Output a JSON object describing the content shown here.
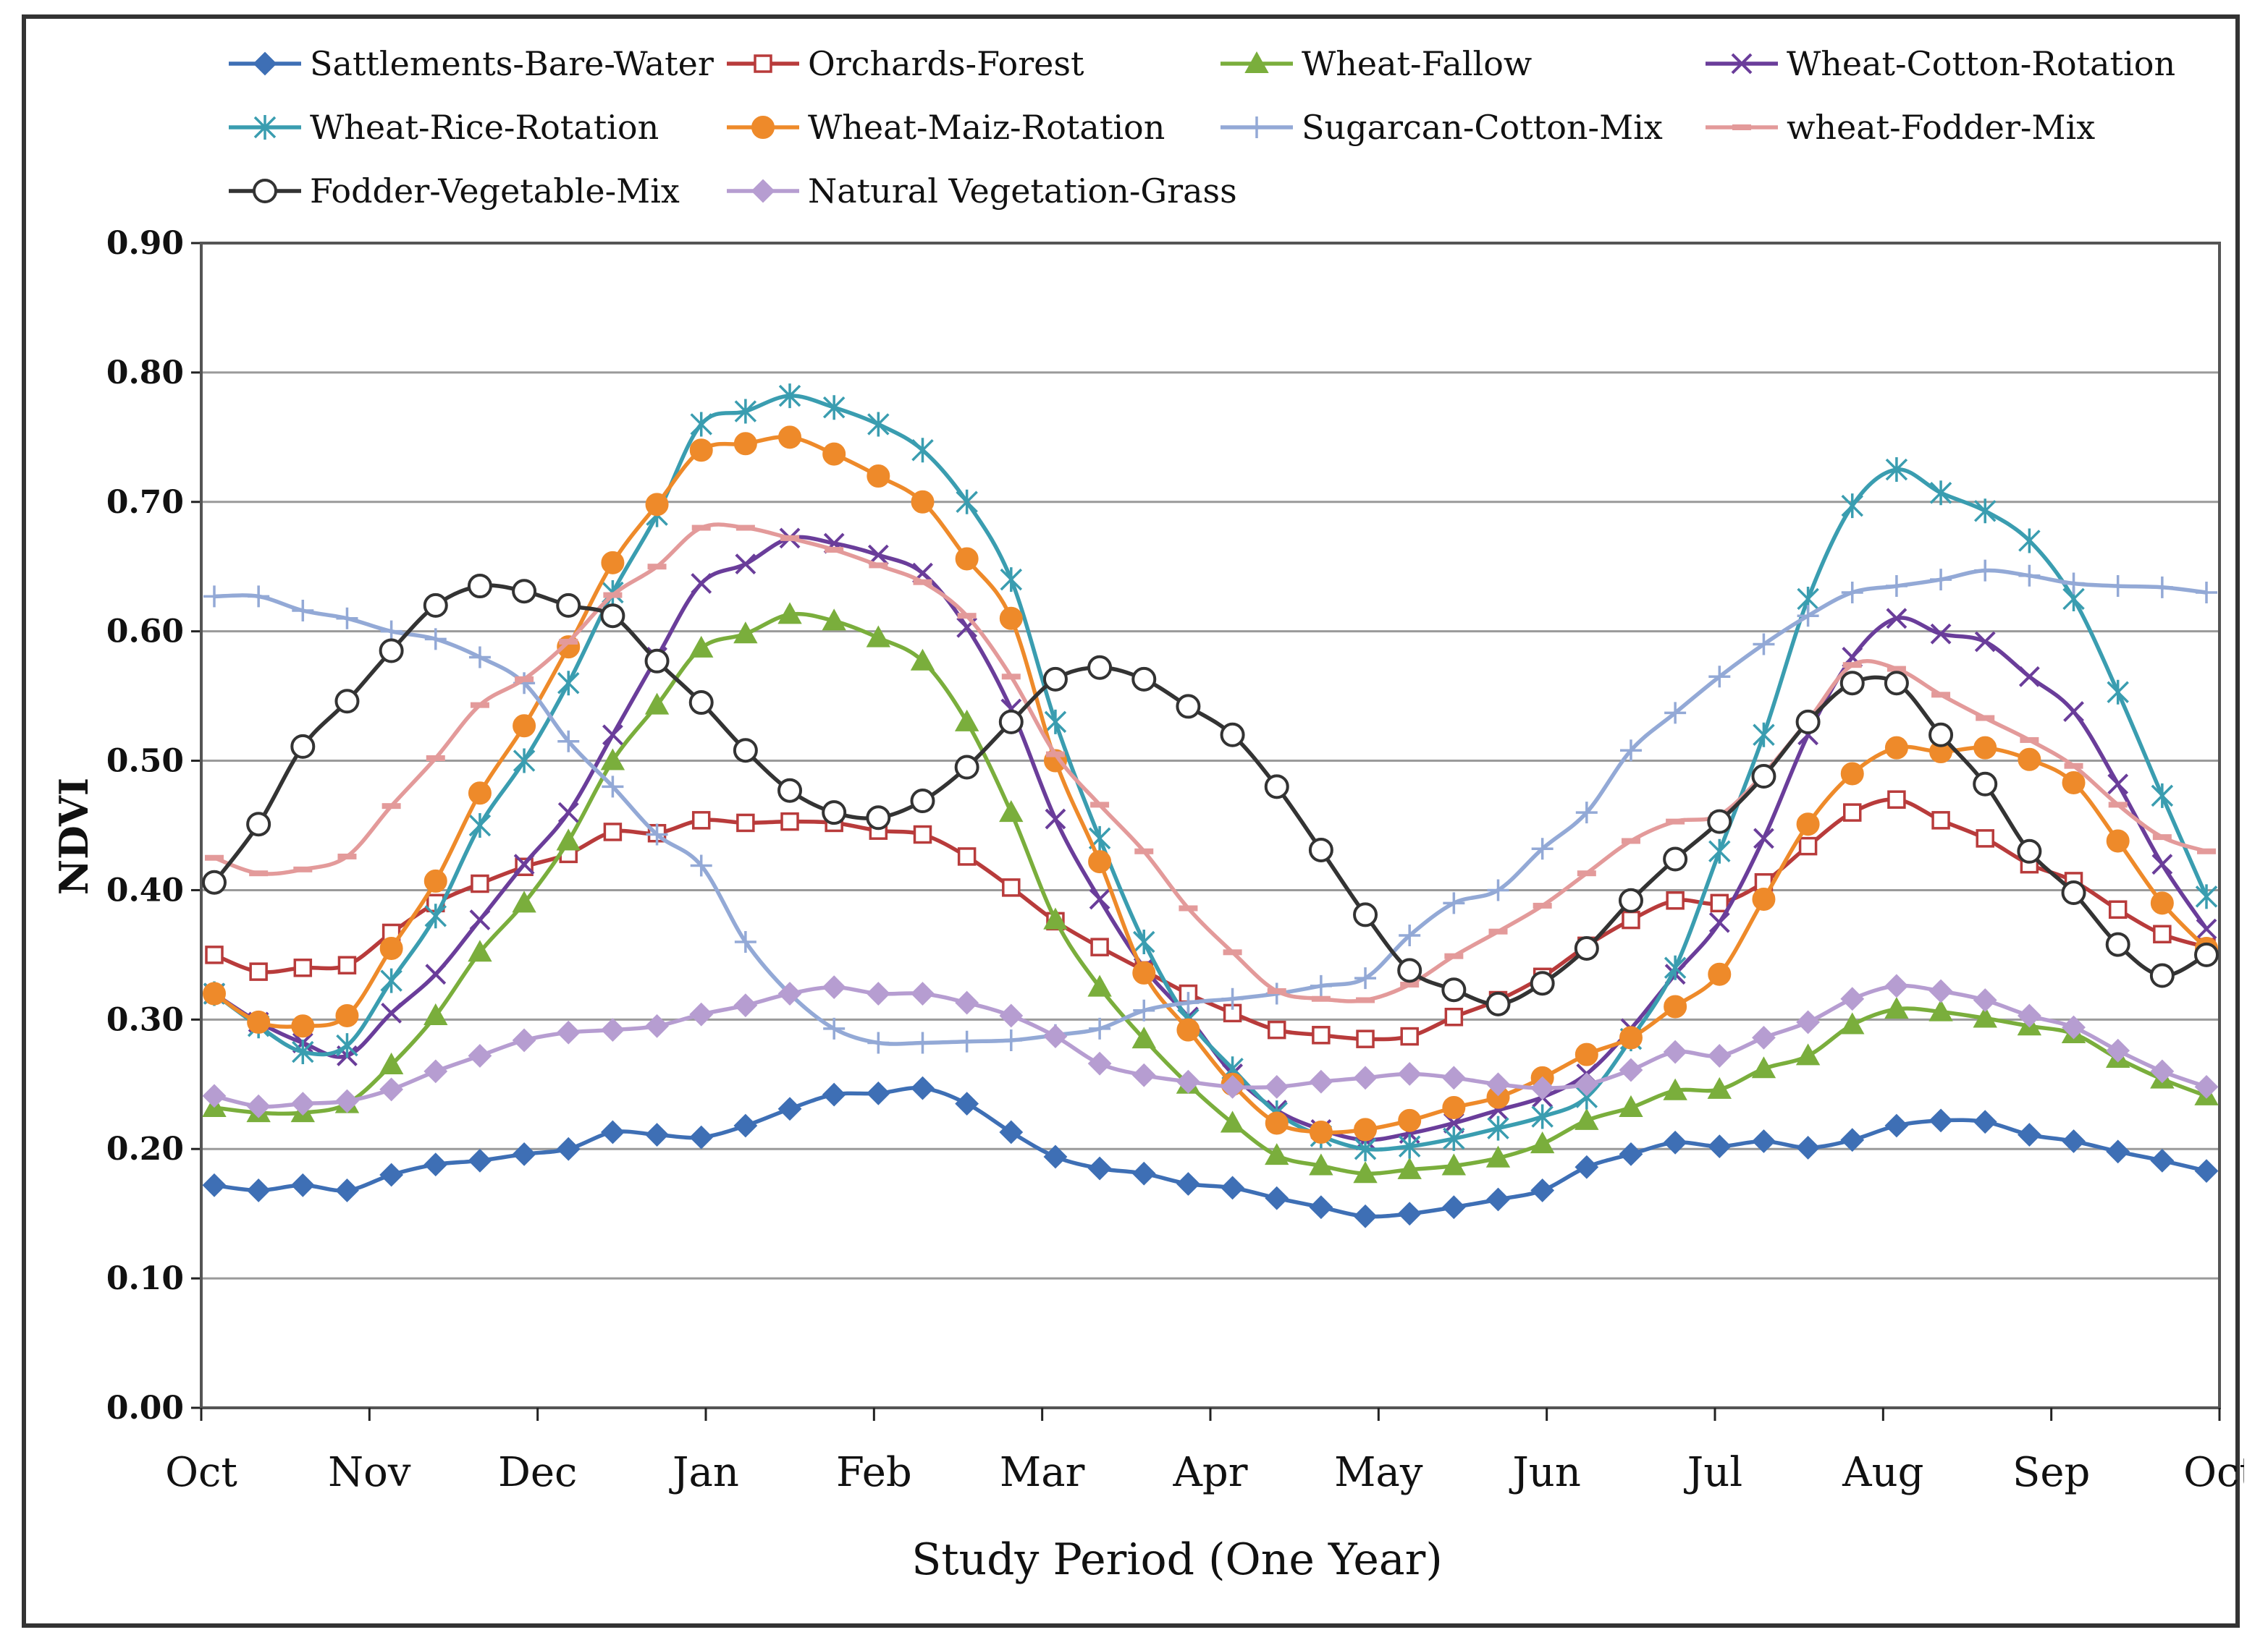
{
  "chart_data": {
    "type": "line",
    "title": "",
    "xlabel": "Study Period (One Year)",
    "ylabel": "NDVI",
    "ylim": [
      0,
      0.9
    ],
    "y_ticks": [
      "0.00",
      "0.10",
      "0.20",
      "0.30",
      "0.40",
      "0.50",
      "0.60",
      "0.70",
      "0.80",
      "0.90"
    ],
    "x_month_labels": [
      "Oct",
      "Nov",
      "Dec",
      "Jan",
      "Feb",
      "Mar",
      "Apr",
      "May",
      "Jun",
      "Jul",
      "Aug",
      "Sep",
      "Oct"
    ],
    "grid": "horizontal",
    "legend_position": "top",
    "series": [
      {
        "name": "Sattlements-Bare-Water",
        "color": "#3E6FB5",
        "marker": "diamond-filled",
        "values": [
          0.172,
          0.168,
          0.172,
          0.168,
          0.18,
          0.188,
          0.191,
          0.196,
          0.2,
          0.213,
          0.211,
          0.209,
          0.218,
          0.231,
          0.242,
          0.243,
          0.247,
          0.235,
          0.213,
          0.194,
          0.185,
          0.181,
          0.173,
          0.17,
          0.162,
          0.155,
          0.148,
          0.15,
          0.155,
          0.161,
          0.168,
          0.186,
          0.196,
          0.205,
          0.202,
          0.206,
          0.201,
          0.207,
          0.218,
          0.222,
          0.221,
          0.211,
          0.206,
          0.198,
          0.191,
          0.183
        ]
      },
      {
        "name": "Orchards-Forest",
        "color": "#B83B3B",
        "marker": "square-open",
        "values": [
          0.35,
          0.337,
          0.34,
          0.342,
          0.367,
          0.39,
          0.405,
          0.418,
          0.428,
          0.445,
          0.444,
          0.454,
          0.452,
          0.453,
          0.452,
          0.446,
          0.443,
          0.426,
          0.402,
          0.376,
          0.356,
          0.338,
          0.32,
          0.305,
          0.292,
          0.288,
          0.285,
          0.287,
          0.302,
          0.315,
          0.333,
          0.357,
          0.377,
          0.392,
          0.39,
          0.406,
          0.434,
          0.46,
          0.47,
          0.454,
          0.44,
          0.42,
          0.407,
          0.385,
          0.366,
          0.356
        ]
      },
      {
        "name": "Wheat-Fallow",
        "color": "#7AAE3C",
        "marker": "triangle-filled",
        "values": [
          0.232,
          0.228,
          0.228,
          0.235,
          0.265,
          0.303,
          0.352,
          0.39,
          0.438,
          0.5,
          0.543,
          0.587,
          0.598,
          0.613,
          0.608,
          0.595,
          0.577,
          0.53,
          0.46,
          0.377,
          0.325,
          0.285,
          0.25,
          0.22,
          0.195,
          0.187,
          0.181,
          0.184,
          0.187,
          0.193,
          0.204,
          0.222,
          0.232,
          0.245,
          0.246,
          0.262,
          0.272,
          0.296,
          0.308,
          0.306,
          0.301,
          0.295,
          0.289,
          0.27,
          0.254,
          0.241
        ]
      },
      {
        "name": "Wheat-Cotton-Rotation",
        "color": "#6A3D9A",
        "marker": "x",
        "values": [
          0.32,
          0.298,
          0.282,
          0.272,
          0.305,
          0.335,
          0.377,
          0.42,
          0.46,
          0.52,
          0.58,
          0.637,
          0.652,
          0.672,
          0.668,
          0.659,
          0.645,
          0.603,
          0.54,
          0.455,
          0.393,
          0.34,
          0.302,
          0.258,
          0.23,
          0.215,
          0.207,
          0.212,
          0.22,
          0.23,
          0.24,
          0.258,
          0.293,
          0.335,
          0.375,
          0.44,
          0.52,
          0.58,
          0.61,
          0.598,
          0.592,
          0.565,
          0.538,
          0.482,
          0.42,
          0.37
        ]
      },
      {
        "name": "Wheat-Rice-Rotation",
        "color": "#3A9DB0",
        "marker": "asterisk",
        "values": [
          0.32,
          0.295,
          0.275,
          0.28,
          0.33,
          0.38,
          0.45,
          0.5,
          0.56,
          0.63,
          0.69,
          0.76,
          0.77,
          0.782,
          0.773,
          0.76,
          0.74,
          0.7,
          0.64,
          0.53,
          0.44,
          0.36,
          0.3,
          0.262,
          0.228,
          0.21,
          0.2,
          0.202,
          0.208,
          0.216,
          0.225,
          0.24,
          0.285,
          0.34,
          0.43,
          0.52,
          0.625,
          0.697,
          0.725,
          0.707,
          0.693,
          0.67,
          0.625,
          0.553,
          0.473,
          0.395
        ]
      },
      {
        "name": "Wheat-Maiz-Rotation",
        "color": "#EE8A2A",
        "marker": "circle-filled",
        "values": [
          0.32,
          0.298,
          0.295,
          0.303,
          0.355,
          0.407,
          0.475,
          0.527,
          0.588,
          0.653,
          0.698,
          0.74,
          0.745,
          0.75,
          0.737,
          0.72,
          0.7,
          0.656,
          0.61,
          0.5,
          0.422,
          0.336,
          0.292,
          0.25,
          0.22,
          0.213,
          0.215,
          0.222,
          0.232,
          0.24,
          0.255,
          0.273,
          0.286,
          0.31,
          0.335,
          0.393,
          0.451,
          0.49,
          0.51,
          0.507,
          0.51,
          0.501,
          0.483,
          0.438,
          0.39,
          0.355
        ]
      },
      {
        "name": "Sugarcan-Cotton-Mix",
        "color": "#93A9D6",
        "marker": "plus",
        "values": [
          0.627,
          0.627,
          0.616,
          0.61,
          0.6,
          0.594,
          0.58,
          0.56,
          0.515,
          0.48,
          0.443,
          0.419,
          0.36,
          0.32,
          0.293,
          0.282,
          0.282,
          0.283,
          0.284,
          0.288,
          0.293,
          0.307,
          0.313,
          0.316,
          0.32,
          0.326,
          0.332,
          0.365,
          0.39,
          0.4,
          0.432,
          0.46,
          0.508,
          0.537,
          0.565,
          0.59,
          0.612,
          0.63,
          0.635,
          0.64,
          0.647,
          0.643,
          0.637,
          0.635,
          0.634,
          0.63
        ]
      },
      {
        "name": "wheat-Fodder-Mix",
        "color": "#E39A9A",
        "marker": "dash",
        "values": [
          0.425,
          0.413,
          0.416,
          0.426,
          0.465,
          0.502,
          0.543,
          0.563,
          0.592,
          0.628,
          0.65,
          0.68,
          0.68,
          0.672,
          0.663,
          0.651,
          0.638,
          0.612,
          0.565,
          0.505,
          0.466,
          0.43,
          0.386,
          0.352,
          0.322,
          0.316,
          0.315,
          0.327,
          0.349,
          0.368,
          0.388,
          0.413,
          0.438,
          0.453,
          0.458,
          0.49,
          0.531,
          0.574,
          0.571,
          0.551,
          0.533,
          0.516,
          0.496,
          0.466,
          0.441,
          0.43
        ]
      },
      {
        "name": "Fodder-Vegetable-Mix",
        "color": "#333333",
        "marker": "circle-open",
        "values": [
          0.406,
          0.451,
          0.511,
          0.546,
          0.585,
          0.62,
          0.635,
          0.631,
          0.62,
          0.612,
          0.577,
          0.545,
          0.508,
          0.477,
          0.46,
          0.456,
          0.469,
          0.495,
          0.53,
          0.563,
          0.572,
          0.563,
          0.542,
          0.52,
          0.48,
          0.431,
          0.381,
          0.338,
          0.323,
          0.312,
          0.328,
          0.355,
          0.392,
          0.424,
          0.453,
          0.488,
          0.53,
          0.56,
          0.56,
          0.52,
          0.482,
          0.43,
          0.398,
          0.358,
          0.334,
          0.35
        ]
      },
      {
        "name": "Natural Vegetation-Grass",
        "color": "#B69DD1",
        "marker": "diamond-filled",
        "values": [
          0.241,
          0.233,
          0.235,
          0.237,
          0.246,
          0.26,
          0.272,
          0.284,
          0.29,
          0.292,
          0.295,
          0.304,
          0.311,
          0.32,
          0.325,
          0.32,
          0.32,
          0.313,
          0.303,
          0.287,
          0.266,
          0.257,
          0.252,
          0.248,
          0.248,
          0.252,
          0.255,
          0.258,
          0.255,
          0.25,
          0.247,
          0.25,
          0.261,
          0.275,
          0.272,
          0.286,
          0.298,
          0.316,
          0.326,
          0.322,
          0.315,
          0.303,
          0.294,
          0.276,
          0.26,
          0.248
        ]
      }
    ]
  }
}
